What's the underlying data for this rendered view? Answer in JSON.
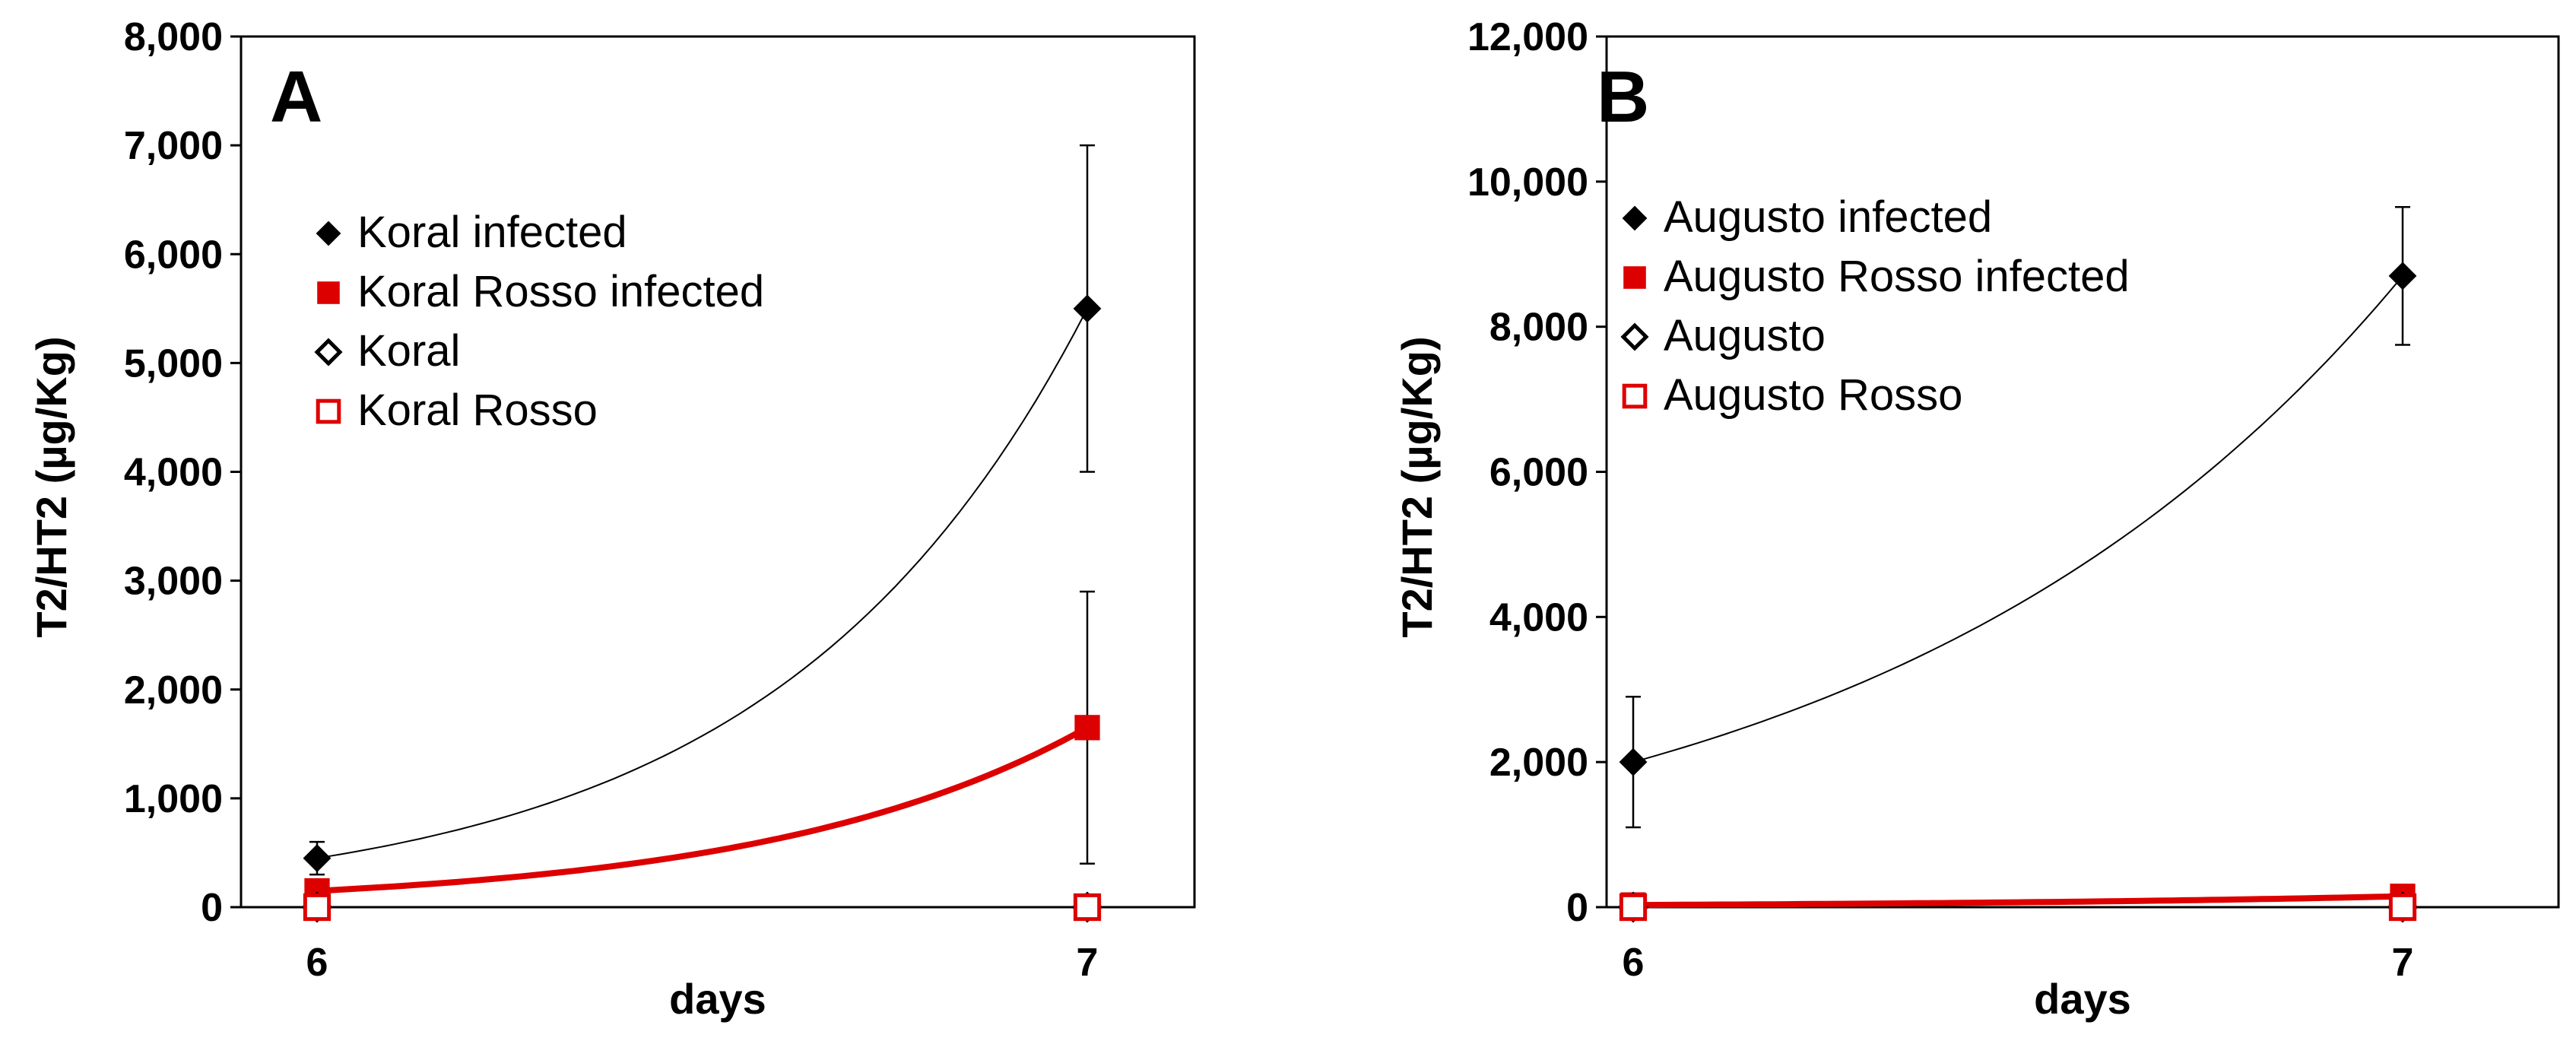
{
  "chart_data": [
    {
      "panel": "A",
      "type": "line",
      "xlabel": "days",
      "ylabel": "T2/HT2 (µg/Kg)",
      "x": [
        6,
        7
      ],
      "x_tick_labels": [
        "6",
        "7"
      ],
      "ylim": [
        0,
        8000
      ],
      "y_ticks": [
        0,
        1000,
        2000,
        3000,
        4000,
        5000,
        6000,
        7000,
        8000
      ],
      "y_tick_labels": [
        "0",
        "1,000",
        "2,000",
        "3,000",
        "4,000",
        "5,000",
        "6,000",
        "7,000",
        "8,000"
      ],
      "legend_position": "top-left",
      "series": [
        {
          "name": "Koral infected",
          "marker": "diamond-filled",
          "color": "#000000",
          "values": [
            450,
            5500
          ],
          "error": [
            150,
            1500
          ],
          "trend": "exponential"
        },
        {
          "name": "Koral Rosso infected",
          "marker": "square-filled",
          "color": "#dd0000",
          "values": [
            150,
            1650
          ],
          "error": [
            60,
            1250
          ],
          "trend": "exponential"
        },
        {
          "name": "Koral",
          "marker": "diamond-open",
          "color": "#000000",
          "values": [
            0,
            0
          ]
        },
        {
          "name": "Koral Rosso",
          "marker": "square-open",
          "color": "#dd0000",
          "values": [
            0,
            0
          ]
        }
      ]
    },
    {
      "panel": "B",
      "type": "line",
      "xlabel": "days",
      "ylabel": "T2/HT2 (µg/Kg)",
      "x": [
        6,
        7
      ],
      "x_tick_labels": [
        "6",
        "7"
      ],
      "ylim": [
        0,
        12000
      ],
      "y_ticks": [
        0,
        2000,
        4000,
        6000,
        8000,
        10000,
        12000
      ],
      "y_tick_labels": [
        "0",
        "2,000",
        "4,000",
        "6,000",
        "8,000",
        "10,000",
        "12,000"
      ],
      "legend_position": "top-left",
      "series": [
        {
          "name": "Augusto infected",
          "marker": "diamond-filled",
          "color": "#000000",
          "values": [
            2000,
            8700
          ],
          "error": [
            900,
            950
          ],
          "trend": "exponential"
        },
        {
          "name": "Augusto Rosso infected",
          "marker": "square-filled",
          "color": "#dd0000",
          "values": [
            30,
            150
          ],
          "error": [
            0,
            0
          ],
          "trend": "exponential"
        },
        {
          "name": "Augusto",
          "marker": "diamond-open",
          "color": "#000000",
          "values": [
            0,
            0
          ]
        },
        {
          "name": "Augusto Rosso",
          "marker": "square-open",
          "color": "#dd0000",
          "values": [
            0,
            0
          ]
        }
      ]
    }
  ]
}
